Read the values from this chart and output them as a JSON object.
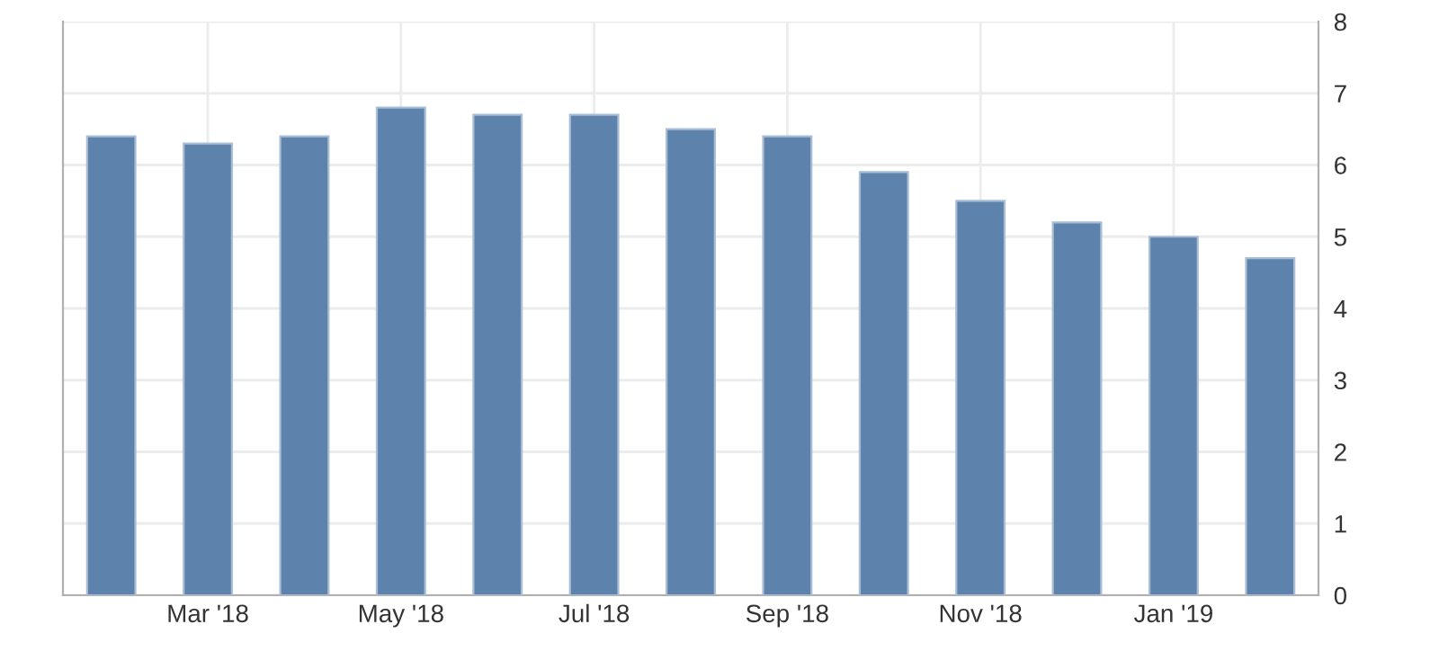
{
  "chart_data": {
    "type": "bar",
    "categories": [
      null,
      "Mar '18",
      null,
      "May '18",
      null,
      "Jul '18",
      null,
      "Sep '18",
      null,
      "Nov '18",
      null,
      "Jan '19",
      null
    ],
    "values": [
      6.4,
      6.3,
      6.4,
      6.8,
      6.7,
      6.7,
      6.5,
      6.4,
      5.9,
      5.5,
      5.2,
      5.0,
      4.7
    ],
    "color": "#5d83ad",
    "ylim": [
      0,
      8
    ],
    "yticks": [
      0,
      1,
      2,
      3,
      4,
      5,
      6,
      7,
      8
    ],
    "grid": true
  }
}
